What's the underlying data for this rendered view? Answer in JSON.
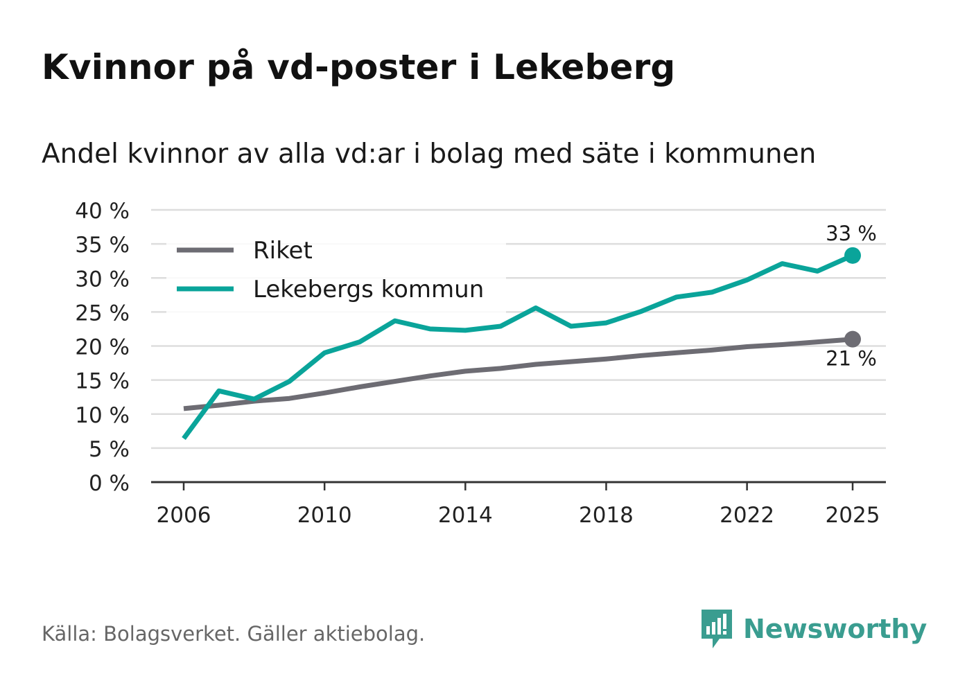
{
  "title": "Kvinnor på vd-poster i Lekeberg",
  "subtitle": "Andel kvinnor av alla vd:ar i bolag med säte i kommunen",
  "source": "Källa: Bolagsverket. Gäller aktiebolag.",
  "brand": {
    "name": "Newsworthy",
    "icon": "newsworthy-logo-icon",
    "color": "#3a9d90"
  },
  "colors": {
    "riket": "#6d6c73",
    "kommun": "#0aa49a",
    "grid": "#dddddd",
    "axis": "#333333"
  },
  "chart_data": {
    "type": "line",
    "title": "Kvinnor på vd-poster i Lekeberg",
    "ylabel": "Andel kvinnor av alla vd:ar i bolag med säte i kommunen",
    "x": [
      2006,
      2007,
      2008,
      2009,
      2010,
      2011,
      2012,
      2013,
      2014,
      2015,
      2016,
      2017,
      2018,
      2019,
      2020,
      2021,
      2022,
      2023,
      2024,
      2025
    ],
    "xticks": [
      2006,
      2010,
      2014,
      2018,
      2022,
      2025
    ],
    "xtick_labels": [
      "2006",
      "2010",
      "2014",
      "2018",
      "2022",
      "2025"
    ],
    "ylim": [
      0,
      40
    ],
    "yticks": [
      0,
      5,
      10,
      15,
      20,
      25,
      30,
      35,
      40
    ],
    "ytick_labels": [
      "0 %",
      "5 %",
      "10 %",
      "15 %",
      "20 %",
      "25 %",
      "30 %",
      "35 %",
      "40 %"
    ],
    "legend_position": "top-left",
    "series": [
      {
        "name": "Riket",
        "key": "riket",
        "values": [
          10.8,
          11.3,
          11.9,
          12.3,
          13.1,
          14.0,
          14.8,
          15.6,
          16.3,
          16.7,
          17.3,
          17.7,
          18.1,
          18.6,
          19.0,
          19.4,
          19.9,
          20.2,
          20.6,
          21.0
        ],
        "end_label": "21 %"
      },
      {
        "name": "Lekebergs kommun",
        "key": "kommun",
        "values": [
          6.4,
          13.4,
          12.2,
          14.8,
          19.0,
          20.6,
          23.7,
          22.5,
          22.3,
          22.9,
          25.6,
          22.9,
          23.4,
          25.1,
          27.2,
          27.9,
          29.7,
          32.1,
          31.0,
          33.3
        ],
        "end_label": "33 %"
      }
    ]
  }
}
